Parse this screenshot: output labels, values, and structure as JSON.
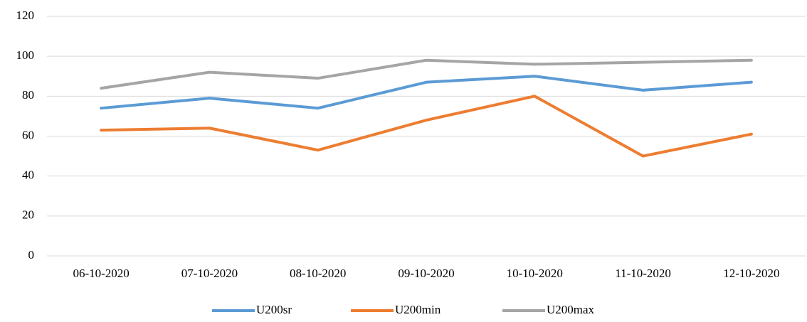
{
  "chart_data": {
    "type": "line",
    "categories": [
      "06-10-2020",
      "07-10-2020",
      "08-10-2020",
      "09-10-2020",
      "10-10-2020",
      "11-10-2020",
      "12-10-2020"
    ],
    "series": [
      {
        "name": "U200sr",
        "color": "#5b9bd5",
        "values": [
          74,
          79,
          74,
          87,
          90,
          83,
          87
        ]
      },
      {
        "name": "U200min",
        "color": "#ed7d31",
        "values": [
          63,
          64,
          53,
          68,
          80,
          50,
          61
        ]
      },
      {
        "name": "U200max",
        "color": "#a5a5a5",
        "values": [
          84,
          92,
          89,
          98,
          96,
          97,
          98
        ]
      }
    ],
    "ylim": [
      0,
      120
    ],
    "yticks": [
      0,
      20,
      40,
      60,
      80,
      100,
      120
    ],
    "grid": true,
    "legend": "bottom"
  }
}
